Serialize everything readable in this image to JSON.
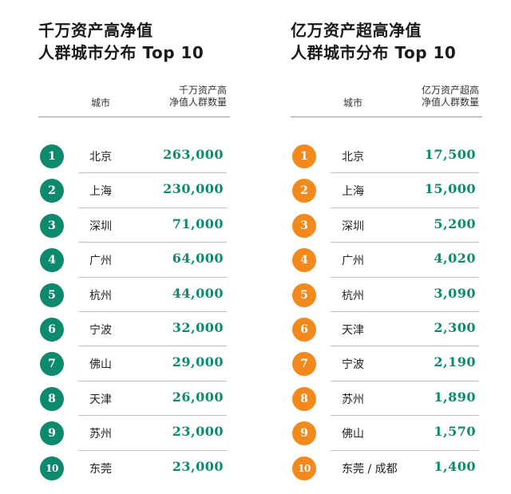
{
  "colors": {
    "left_accent": "#0d8a6e",
    "right_accent": "#f2891c",
    "value_text": "#0d8a6e"
  },
  "left": {
    "title_line_1": "千万资产高净值",
    "title_line_2": "人群城市分布 Top 10",
    "col_city": "城市",
    "col_count_1": "千万资产高",
    "col_count_2": "净值人群数量",
    "rows": [
      {
        "rank": "1",
        "city": "北京",
        "count": "263,000"
      },
      {
        "rank": "2",
        "city": "上海",
        "count": "230,000"
      },
      {
        "rank": "3",
        "city": "深圳",
        "count": "71,000"
      },
      {
        "rank": "4",
        "city": "广州",
        "count": "64,000"
      },
      {
        "rank": "5",
        "city": "杭州",
        "count": "44,000"
      },
      {
        "rank": "6",
        "city": "宁波",
        "count": "32,000"
      },
      {
        "rank": "7",
        "city": "佛山",
        "count": "29,000"
      },
      {
        "rank": "8",
        "city": "天津",
        "count": "26,000"
      },
      {
        "rank": "9",
        "city": "苏州",
        "count": "23,000"
      },
      {
        "rank": "10",
        "city": "东莞",
        "count": "23,000"
      }
    ]
  },
  "right": {
    "title_line_1": "亿万资产超高净值",
    "title_line_2": "人群城市分布 Top 10",
    "col_city": "城市",
    "col_count_1": "亿万资产超高",
    "col_count_2": "净值人群数量",
    "rows": [
      {
        "rank": "1",
        "city": "北京",
        "count": "17,500"
      },
      {
        "rank": "2",
        "city": "上海",
        "count": "15,000"
      },
      {
        "rank": "3",
        "city": "深圳",
        "count": "5,200"
      },
      {
        "rank": "4",
        "city": "广州",
        "count": "4,020"
      },
      {
        "rank": "5",
        "city": "杭州",
        "count": "3,090"
      },
      {
        "rank": "6",
        "city": "天津",
        "count": "2,300"
      },
      {
        "rank": "7",
        "city": "宁波",
        "count": "2,190"
      },
      {
        "rank": "8",
        "city": "苏州",
        "count": "1,890"
      },
      {
        "rank": "9",
        "city": "佛山",
        "count": "1,570"
      },
      {
        "rank": "10",
        "city": "东莞 / 成都",
        "count": "1,400"
      }
    ]
  }
}
